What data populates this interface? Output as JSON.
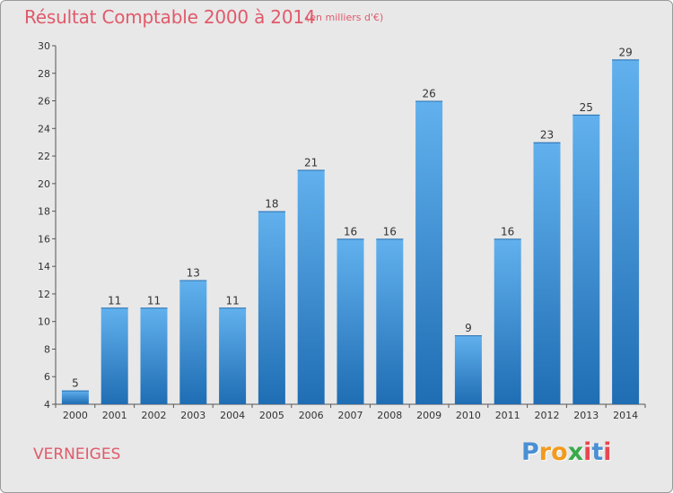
{
  "commune": "VERNEIGES",
  "logo": {
    "letters": [
      "P",
      "r",
      "o",
      "x",
      "i",
      "t",
      "i"
    ]
  },
  "colors": {
    "title": "#e05a6a",
    "bar_top": "#62b1ee",
    "bar_bottom": "#1f6db3",
    "background": "#e8e8e8",
    "logo": [
      "#4a8fd4",
      "#f39a1c",
      "#f39a1c",
      "#3aaa4a",
      "#e8474f",
      "#4a8fd4",
      "#e8474f"
    ]
  },
  "chart_data": {
    "type": "bar",
    "title": "Résultat Comptable 2000 à 2014",
    "subtitle": "(en milliers d'€)",
    "categories": [
      "2000",
      "2001",
      "2002",
      "2003",
      "2004",
      "2005",
      "2006",
      "2007",
      "2008",
      "2009",
      "2010",
      "2011",
      "2012",
      "2013",
      "2014"
    ],
    "values": [
      5,
      11,
      11,
      13,
      11,
      18,
      21,
      16,
      16,
      26,
      9,
      16,
      23,
      25,
      29
    ],
    "ylim": [
      4,
      30
    ],
    "yticks": [
      4,
      6,
      8,
      10,
      12,
      14,
      16,
      18,
      20,
      22,
      24,
      26,
      28,
      30
    ],
    "grid": false,
    "legend": "none"
  }
}
